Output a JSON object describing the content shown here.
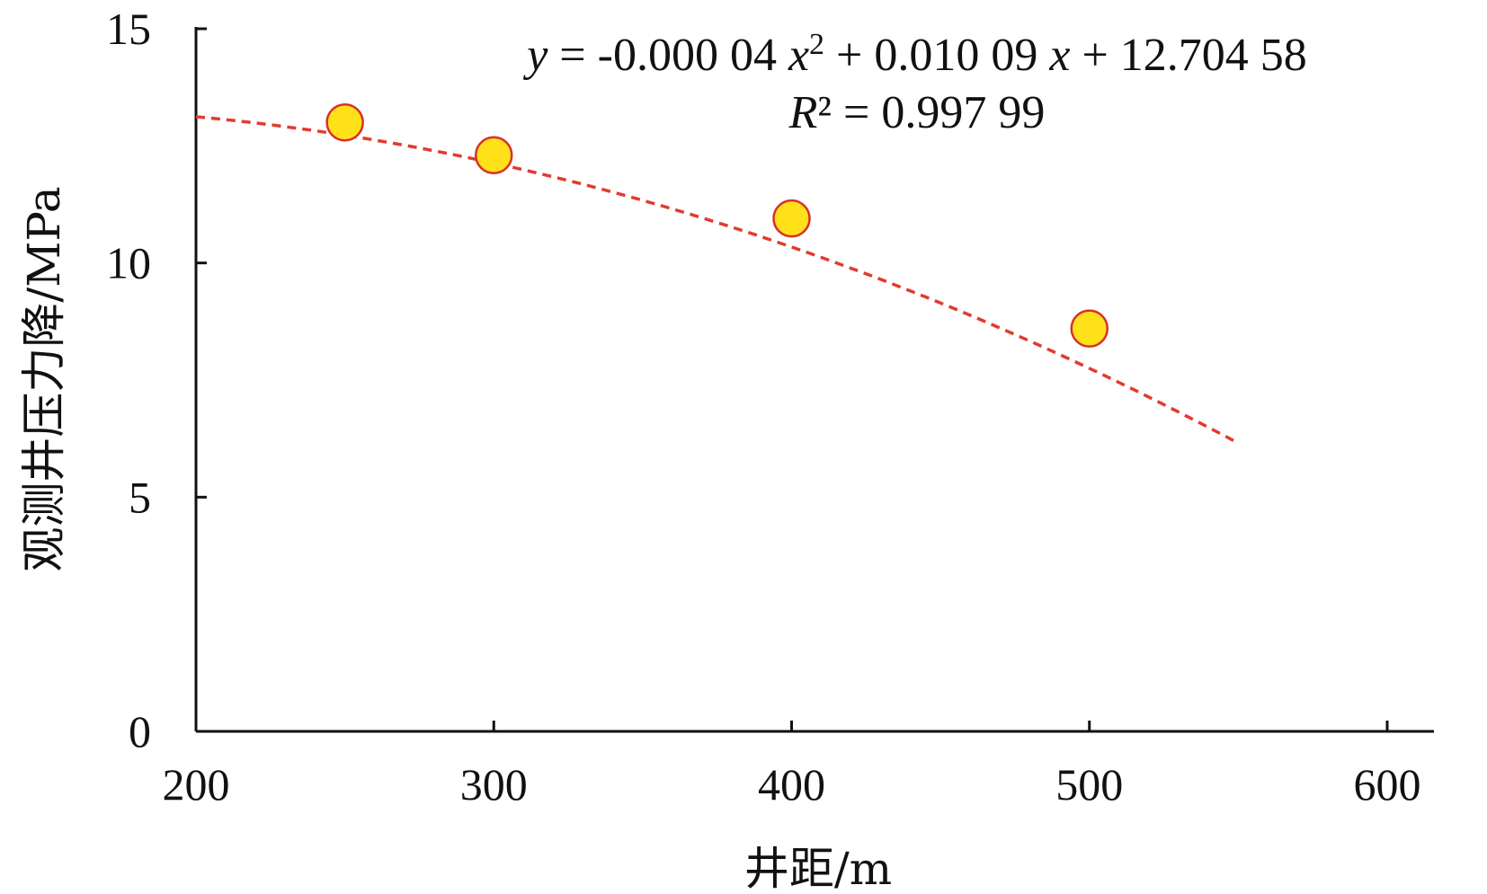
{
  "chart_data": {
    "type": "scatter",
    "title": "",
    "xlabel": "井距/m",
    "ylabel": "观测井压力降/MPa",
    "xlim": [
      200,
      600
    ],
    "ylim": [
      0,
      15
    ],
    "xticks": [
      200,
      300,
      400,
      500,
      600
    ],
    "yticks": [
      0,
      5,
      10,
      15
    ],
    "grid": false,
    "series": [
      {
        "points": [
          {
            "x": 250,
            "y": 13.0
          },
          {
            "x": 300,
            "y": 12.3
          },
          {
            "x": 400,
            "y": 10.95
          },
          {
            "x": 500,
            "y": 8.6
          }
        ],
        "color": "#ffe11a",
        "edge_color": "#d9302a"
      }
    ],
    "trendline": {
      "type": "polynomial",
      "order": 2,
      "coefficients": [
        -4e-05,
        0.01009,
        12.70458
      ],
      "x_range": [
        200,
        550
      ],
      "color": "#e23b2e",
      "style": "dashed"
    },
    "annotations": {
      "equation": {
        "y_var": "y",
        "eq_part1": " = -0.000 04 ",
        "x_var": "x",
        "power": "2",
        "eq_part2": " + 0.010 09 ",
        "eq_part3": " + 12.704 58"
      },
      "r_squared": {
        "r_var": "R",
        "power": "²",
        "value_part": " = 0.997 99"
      }
    }
  }
}
